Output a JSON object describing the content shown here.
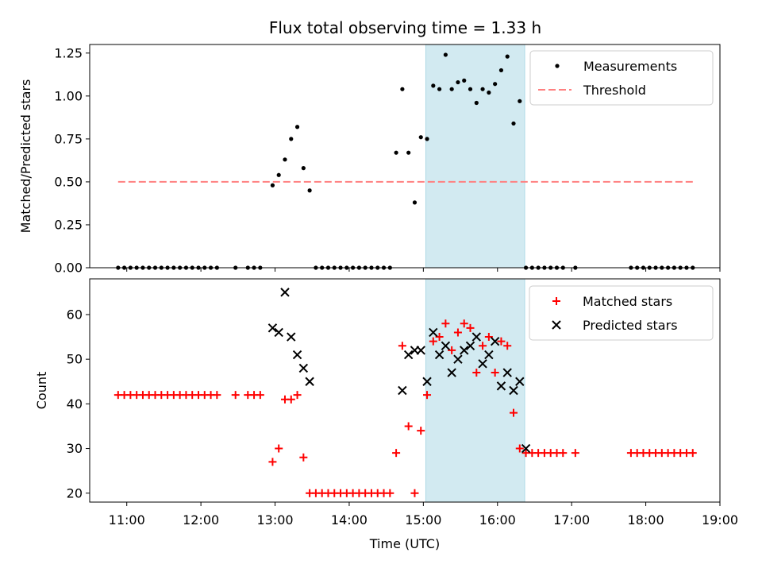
{
  "title": "Flux total observing time = 1.33 h",
  "xlabel": "Time (UTC)",
  "x_tick_labels": [
    "11:00",
    "12:00",
    "13:00",
    "14:00",
    "15:00",
    "16:00",
    "17:00",
    "18:00",
    "19:00"
  ],
  "colors": {
    "shade": "#add8e6",
    "threshold": "#ff8080",
    "matched": "#ff0000",
    "predicted": "#000000",
    "measurement": "#000000"
  },
  "chart_data": [
    {
      "type": "scatter",
      "panel": "top",
      "ylabel": "Matched/Predicted stars",
      "xlim": [
        "10:30",
        "19:00"
      ],
      "ylim": [
        0,
        1.3
      ],
      "y_ticks": [
        "0.00",
        "0.25",
        "0.50",
        "0.75",
        "1.00",
        "1.25"
      ],
      "shaded_interval": [
        "15:02",
        "16:22"
      ],
      "legend": {
        "placement": "top-right",
        "entries": [
          "Measurements",
          "Threshold"
        ]
      },
      "threshold": {
        "name": "Threshold",
        "value": 0.5,
        "x_range": [
          "10:53",
          "18:39"
        ]
      },
      "series": [
        {
          "name": "Measurements",
          "x": [
            "10:53",
            "10:58",
            "11:03",
            "11:08",
            "11:13",
            "11:18",
            "11:23",
            "11:28",
            "11:33",
            "11:38",
            "11:43",
            "11:48",
            "11:53",
            "11:58",
            "12:03",
            "12:08",
            "12:13",
            "12:28",
            "12:38",
            "12:43",
            "12:48",
            "12:58",
            "13:03",
            "13:08",
            "13:13",
            "13:18",
            "13:23",
            "13:28",
            "13:33",
            "13:38",
            "13:43",
            "13:48",
            "13:53",
            "13:58",
            "14:03",
            "14:08",
            "14:13",
            "14:18",
            "14:23",
            "14:28",
            "14:33",
            "14:38",
            "14:43",
            "14:48",
            "14:53",
            "14:58",
            "15:03",
            "15:08",
            "15:13",
            "15:18",
            "15:23",
            "15:28",
            "15:33",
            "15:38",
            "15:43",
            "15:48",
            "15:53",
            "15:58",
            "16:03",
            "16:08",
            "16:13",
            "16:18",
            "16:23",
            "16:28",
            "16:33",
            "16:38",
            "16:43",
            "16:48",
            "16:53",
            "17:03",
            "17:48",
            "17:53",
            "17:58",
            "18:03",
            "18:08",
            "18:13",
            "18:18",
            "18:23",
            "18:28",
            "18:33",
            "18:38"
          ],
          "y": [
            0,
            0,
            0,
            0,
            0,
            0,
            0,
            0,
            0,
            0,
            0,
            0,
            0,
            0,
            0,
            0,
            0,
            0,
            0,
            0,
            0,
            0.48,
            0.54,
            0.63,
            0.75,
            0.82,
            0.58,
            0.45,
            0,
            0,
            0,
            0,
            0,
            0,
            0,
            0,
            0,
            0,
            0,
            0,
            0,
            0.67,
            1.04,
            0.67,
            0.38,
            0.76,
            0.75,
            1.06,
            1.04,
            1.24,
            1.04,
            1.08,
            1.09,
            1.04,
            0.96,
            1.04,
            1.02,
            1.07,
            1.15,
            1.23,
            0.84,
            0.97,
            0,
            0,
            0,
            0,
            0,
            0,
            0,
            0,
            0,
            0,
            0,
            0,
            0,
            0,
            0,
            0,
            0,
            0,
            0
          ]
        }
      ]
    },
    {
      "type": "scatter",
      "panel": "bottom",
      "ylabel": "Count",
      "xlabel": "Time (UTC)",
      "xlim": [
        "10:30",
        "19:00"
      ],
      "ylim": [
        18,
        68
      ],
      "y_ticks": [
        "20",
        "30",
        "40",
        "50",
        "60"
      ],
      "shaded_interval": [
        "15:02",
        "16:22"
      ],
      "legend": {
        "placement": "top-right",
        "entries": [
          "Matched stars",
          "Predicted stars"
        ]
      },
      "series": [
        {
          "name": "Matched stars",
          "marker": "plus",
          "x": [
            "10:53",
            "10:58",
            "11:03",
            "11:08",
            "11:13",
            "11:18",
            "11:23",
            "11:28",
            "11:33",
            "11:38",
            "11:43",
            "11:48",
            "11:53",
            "11:58",
            "12:03",
            "12:08",
            "12:13",
            "12:28",
            "12:38",
            "12:43",
            "12:48",
            "12:58",
            "13:03",
            "13:08",
            "13:13",
            "13:18",
            "13:23",
            "13:28",
            "13:33",
            "13:38",
            "13:43",
            "13:48",
            "13:53",
            "13:58",
            "14:03",
            "14:08",
            "14:13",
            "14:18",
            "14:23",
            "14:28",
            "14:33",
            "14:38",
            "14:43",
            "14:48",
            "14:53",
            "14:58",
            "15:03",
            "15:08",
            "15:13",
            "15:18",
            "15:23",
            "15:28",
            "15:33",
            "15:38",
            "15:43",
            "15:48",
            "15:53",
            "15:58",
            "16:03",
            "16:08",
            "16:13",
            "16:18",
            "16:23",
            "16:28",
            "16:33",
            "16:38",
            "16:43",
            "16:48",
            "16:53",
            "17:03",
            "17:48",
            "17:53",
            "17:58",
            "18:03",
            "18:08",
            "18:13",
            "18:18",
            "18:23",
            "18:28",
            "18:33",
            "18:38"
          ],
          "y": [
            42,
            42,
            42,
            42,
            42,
            42,
            42,
            42,
            42,
            42,
            42,
            42,
            42,
            42,
            42,
            42,
            42,
            42,
            42,
            42,
            42,
            27,
            30,
            41,
            41,
            42,
            28,
            20,
            20,
            20,
            20,
            20,
            20,
            20,
            20,
            20,
            20,
            20,
            20,
            20,
            20,
            29,
            53,
            35,
            20,
            34,
            42,
            54,
            55,
            58,
            52,
            56,
            58,
            57,
            47,
            53,
            55,
            47,
            54,
            53,
            38,
            30,
            29,
            29,
            29,
            29,
            29,
            29,
            29,
            29,
            29,
            29,
            29,
            29,
            29,
            29,
            29,
            29,
            29,
            29,
            29
          ]
        },
        {
          "name": "Predicted stars",
          "marker": "x",
          "x": [
            "12:58",
            "13:03",
            "13:08",
            "13:13",
            "13:18",
            "13:23",
            "13:28",
            "14:43",
            "14:48",
            "14:53",
            "14:58",
            "15:03",
            "15:08",
            "15:13",
            "15:18",
            "15:23",
            "15:28",
            "15:33",
            "15:38",
            "15:43",
            "15:48",
            "15:53",
            "15:58",
            "16:03",
            "16:08",
            "16:13",
            "16:18",
            "16:23"
          ],
          "y": [
            57,
            56,
            65,
            55,
            51,
            48,
            45,
            43,
            51,
            52,
            52,
            45,
            56,
            51,
            53,
            47,
            50,
            52,
            53,
            55,
            49,
            51,
            54,
            44,
            47,
            43,
            45,
            30
          ]
        }
      ]
    }
  ]
}
